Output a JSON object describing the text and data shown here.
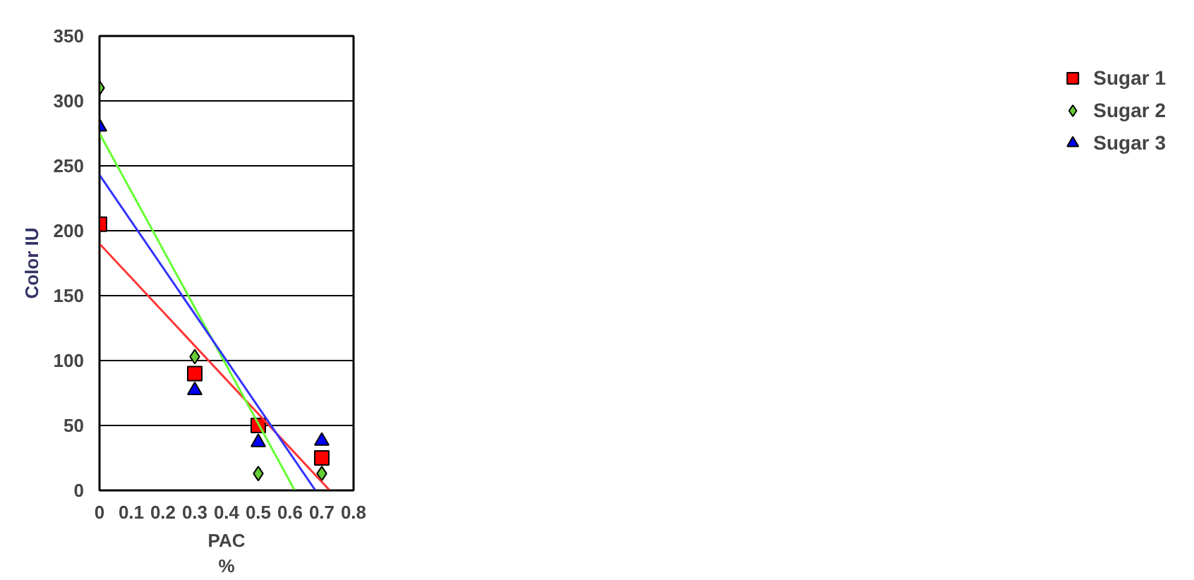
{
  "chart_data": {
    "type": "scatter",
    "xlabel": "PAC\n%",
    "ylabel": "Color IU",
    "xlim": [
      0,
      0.8
    ],
    "xticks": [
      0,
      0.1,
      0.2,
      0.3,
      0.4,
      0.5,
      0.6,
      0.7,
      0.8
    ],
    "ylim": [
      0,
      350
    ],
    "yticks": [
      0,
      50,
      100,
      150,
      200,
      250,
      300,
      350
    ],
    "grid": "y",
    "legend": "right",
    "x": [
      0,
      0.3,
      0.5,
      0.7
    ],
    "series": [
      {
        "name": "Sugar 1",
        "color": "#ff0000",
        "marker": "square",
        "values": [
          205,
          90,
          50,
          25
        ]
      },
      {
        "name": "Sugar 2",
        "color": "#66cc33",
        "marker": "diamond",
        "values": [
          310,
          103,
          13,
          13
        ]
      },
      {
        "name": "Sugar 3",
        "color": "#0000ff",
        "marker": "triangle",
        "values": [
          280,
          77,
          37,
          38
        ]
      },
      {
        "type": "line",
        "color": "#ff3333",
        "x": [
          0,
          0.725
        ],
        "values": [
          190,
          0
        ]
      },
      {
        "type": "line",
        "color": "#66ff33",
        "x": [
          0,
          0.615
        ],
        "values": [
          275,
          0
        ]
      },
      {
        "type": "line",
        "color": "#3333ff",
        "x": [
          0,
          0.68
        ],
        "values": [
          243,
          0
        ]
      }
    ]
  }
}
